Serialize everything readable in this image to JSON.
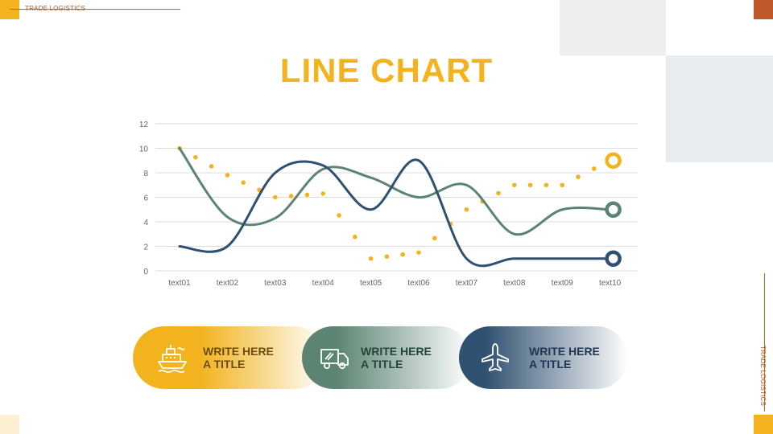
{
  "brand": {
    "top_label": "TRADE LOGISTICS",
    "side_label": "TRADE LOGISTICS"
  },
  "colors": {
    "yellow": "#f2b31f",
    "orange": "#c0592a",
    "green": "#5b8472",
    "navy": "#2f5070",
    "gray_block": "#e9ecef"
  },
  "title": "LINE CHART",
  "chart_data": {
    "type": "line",
    "categories": [
      "text01",
      "text02",
      "text03",
      "text04",
      "text05",
      "text06",
      "text07",
      "text08",
      "text09",
      "text10"
    ],
    "ylim": [
      0,
      12
    ],
    "yticks": [
      0,
      2,
      4,
      6,
      8,
      10,
      12
    ],
    "grid": true,
    "series": [
      {
        "style": "dotted",
        "color": "#f2b31f",
        "values": [
          10,
          7.8,
          6,
          6.3,
          1,
          1.5,
          5,
          7,
          7,
          9
        ]
      },
      {
        "style": "smooth",
        "color": "#5b8472",
        "values": [
          10,
          4.4,
          4.3,
          8.3,
          7.6,
          6,
          7,
          3,
          5,
          5
        ]
      },
      {
        "style": "smooth",
        "color": "#2f5070",
        "values": [
          2,
          2,
          8,
          8.6,
          5,
          9,
          1,
          1,
          1,
          1
        ]
      }
    ]
  },
  "cards": [
    {
      "title": "WRITE HERE\nA TITLE",
      "icon": "ship-icon"
    },
    {
      "title": "WRITE HERE\nA TITLE",
      "icon": "truck-icon"
    },
    {
      "title": "WRITE HERE\nA TITLE",
      "icon": "airplane-icon"
    }
  ]
}
